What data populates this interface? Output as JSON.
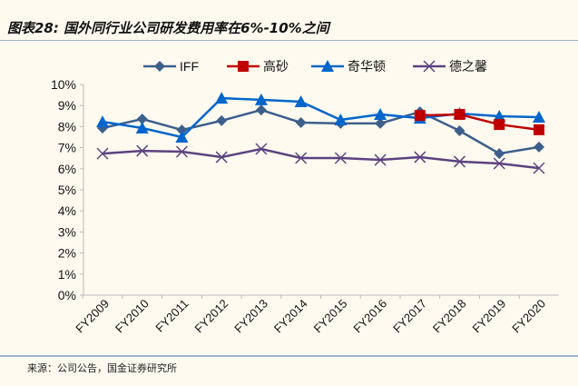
{
  "title": "图表28: 国外同行业公司研发费用率在6%-10%之间",
  "source": "来源：公司公告，国金证券研究所",
  "chart_data": {
    "type": "line",
    "title": "图表28: 国外同行业公司研发费用率在6%-10%之间",
    "categories": [
      "FY2009",
      "FY2010",
      "FY2011",
      "FY2012",
      "FY2013",
      "FY2014",
      "FY2015",
      "FY2016",
      "FY2017",
      "FY2018",
      "FY2019",
      "FY2020"
    ],
    "ylim": [
      0,
      10
    ],
    "yticks": [
      "0%",
      "1%",
      "2%",
      "3%",
      "4%",
      "5%",
      "6%",
      "7%",
      "8%",
      "9%",
      "10%"
    ],
    "legend": "top",
    "grid": false,
    "series": [
      {
        "name": "IFF",
        "color": "#3d5f8c",
        "marker": "diamond",
        "values": [
          7.93,
          8.36,
          7.84,
          8.28,
          8.79,
          8.19,
          8.15,
          8.15,
          8.7,
          7.8,
          6.72,
          7.03
        ]
      },
      {
        "name": "高砂",
        "color": "#c00000",
        "marker": "square",
        "values": [
          null,
          null,
          null,
          null,
          null,
          null,
          null,
          null,
          8.53,
          8.58,
          8.1,
          7.85
        ]
      },
      {
        "name": "奇华顿",
        "color": "#0066cc",
        "marker": "triangle",
        "values": [
          8.23,
          7.93,
          7.5,
          9.35,
          9.27,
          9.18,
          8.32,
          8.58,
          8.4,
          8.62,
          8.49,
          8.45
        ]
      },
      {
        "name": "德之馨",
        "color": "#5b4380",
        "marker": "x",
        "values": [
          6.72,
          6.85,
          6.81,
          6.55,
          6.94,
          6.51,
          6.51,
          6.42,
          6.55,
          6.34,
          6.25,
          6.03
        ]
      }
    ]
  }
}
